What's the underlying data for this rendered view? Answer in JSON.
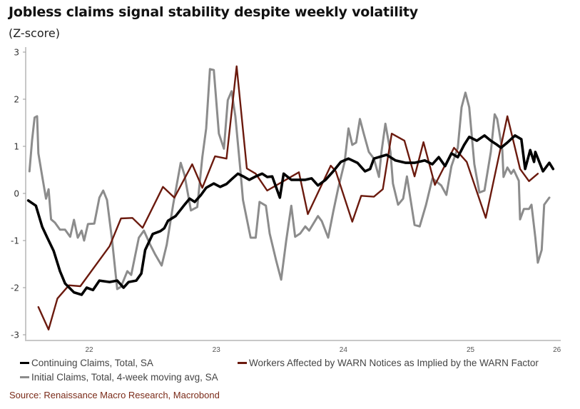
{
  "chart_data": {
    "type": "line",
    "title": "Jobless claims signal stability despite weekly volatility",
    "subtitle": "(Z-score)",
    "xlabel": "",
    "ylabel": "Z-score",
    "ylim": [
      -3,
      3
    ],
    "xlim": [
      2022.0,
      2026.21
    ],
    "yticks": [
      3,
      2,
      1,
      0,
      -1,
      -2,
      -3
    ],
    "xticks": [
      {
        "label": "22",
        "x": 2022.5
      },
      {
        "label": "23",
        "x": 2023.5
      },
      {
        "label": "24",
        "x": 2024.5
      },
      {
        "label": "25",
        "x": 2025.5
      },
      {
        "label": "26",
        "x": 2026.18
      }
    ],
    "grid": false,
    "legend_position": "bottom",
    "series": [
      {
        "name": "Continuing Claims, Total, SA",
        "color": "#000000",
        "points": [
          [
            2022.02,
            -0.15
          ],
          [
            2022.08,
            -0.26
          ],
          [
            2022.13,
            -0.71
          ],
          [
            2022.17,
            -0.94
          ],
          [
            2022.22,
            -1.22
          ],
          [
            2022.27,
            -1.65
          ],
          [
            2022.31,
            -1.91
          ],
          [
            2022.38,
            -2.1
          ],
          [
            2022.44,
            -2.15
          ],
          [
            2022.48,
            -2.0
          ],
          [
            2022.53,
            -2.05
          ],
          [
            2022.58,
            -1.85
          ],
          [
            2022.66,
            -1.88
          ],
          [
            2022.72,
            -1.85
          ],
          [
            2022.77,
            -2.0
          ],
          [
            2022.81,
            -1.88
          ],
          [
            2022.87,
            -1.85
          ],
          [
            2022.91,
            -1.7
          ],
          [
            2022.94,
            -1.2
          ],
          [
            2023.0,
            -0.86
          ],
          [
            2023.06,
            -0.8
          ],
          [
            2023.09,
            -0.74
          ],
          [
            2023.12,
            -0.58
          ],
          [
            2023.18,
            -0.48
          ],
          [
            2023.25,
            -0.24
          ],
          [
            2023.29,
            -0.11
          ],
          [
            2023.33,
            -0.18
          ],
          [
            2023.38,
            -0.03
          ],
          [
            2023.42,
            0.12
          ],
          [
            2023.48,
            0.21
          ],
          [
            2023.53,
            0.14
          ],
          [
            2023.58,
            0.2
          ],
          [
            2023.62,
            0.3
          ],
          [
            2023.67,
            0.42
          ],
          [
            2023.72,
            0.35
          ],
          [
            2023.76,
            0.29
          ],
          [
            2023.81,
            0.36
          ],
          [
            2023.86,
            0.42
          ],
          [
            2023.9,
            0.35
          ],
          [
            2023.94,
            0.36
          ],
          [
            2024.0,
            -0.09
          ],
          [
            2024.03,
            0.42
          ],
          [
            2024.09,
            0.29
          ],
          [
            2024.2,
            0.29
          ],
          [
            2024.25,
            0.32
          ],
          [
            2024.3,
            0.17
          ],
          [
            2024.36,
            0.29
          ],
          [
            2024.42,
            0.47
          ],
          [
            2024.48,
            0.67
          ],
          [
            2024.54,
            0.74
          ],
          [
            2024.61,
            0.65
          ],
          [
            2024.67,
            0.47
          ],
          [
            2024.71,
            0.52
          ],
          [
            2024.74,
            0.74
          ],
          [
            2024.84,
            0.82
          ],
          [
            2024.91,
            0.7
          ],
          [
            2024.99,
            0.65
          ],
          [
            2025.06,
            0.65
          ],
          [
            2025.14,
            0.7
          ],
          [
            2025.2,
            0.62
          ],
          [
            2025.25,
            0.77
          ],
          [
            2025.3,
            0.58
          ],
          [
            2025.35,
            0.85
          ],
          [
            2025.4,
            0.77
          ],
          [
            2025.45,
            1.03
          ],
          [
            2025.49,
            1.2
          ],
          [
            2025.55,
            1.12
          ],
          [
            2025.61,
            1.23
          ],
          [
            2025.66,
            1.12
          ],
          [
            2025.7,
            1.05
          ],
          [
            2025.74,
            0.97
          ],
          [
            2025.79,
            1.08
          ],
          [
            2025.85,
            1.23
          ],
          [
            2025.9,
            1.15
          ],
          [
            2025.93,
            0.52
          ],
          [
            2025.97,
            0.92
          ],
          [
            2026.0,
            0.67
          ],
          [
            2026.01,
            0.88
          ],
          [
            2026.07,
            0.47
          ],
          [
            2026.12,
            0.65
          ],
          [
            2026.15,
            0.52
          ]
        ]
      },
      {
        "name": "Workers Affected by WARN Notices as Implied by the WARN Factor",
        "color": "#6b1a0e",
        "points": [
          [
            2022.1,
            -2.41
          ],
          [
            2022.18,
            -2.89
          ],
          [
            2022.25,
            -2.23
          ],
          [
            2022.34,
            -1.95
          ],
          [
            2022.43,
            -1.97
          ],
          [
            2022.66,
            -1.12
          ],
          [
            2022.75,
            -0.53
          ],
          [
            2022.84,
            -0.52
          ],
          [
            2022.92,
            -0.73
          ],
          [
            2023.08,
            0.14
          ],
          [
            2023.17,
            -0.09
          ],
          [
            2023.31,
            0.62
          ],
          [
            2023.39,
            0.12
          ],
          [
            2023.49,
            0.79
          ],
          [
            2023.58,
            0.74
          ],
          [
            2023.66,
            2.7
          ],
          [
            2023.74,
            0.53
          ],
          [
            2023.81,
            0.42
          ],
          [
            2023.9,
            0.06
          ],
          [
            2024.15,
            0.45
          ],
          [
            2024.22,
            -0.44
          ],
          [
            2024.4,
            0.59
          ],
          [
            2024.44,
            0.47
          ],
          [
            2024.57,
            -0.6
          ],
          [
            2024.64,
            -0.05
          ],
          [
            2024.74,
            -0.07
          ],
          [
            2024.81,
            0.09
          ],
          [
            2024.88,
            1.27
          ],
          [
            2024.98,
            1.12
          ],
          [
            2025.06,
            0.36
          ],
          [
            2025.13,
            1.09
          ],
          [
            2025.22,
            0.18
          ],
          [
            2025.37,
            0.97
          ],
          [
            2025.47,
            0.67
          ],
          [
            2025.62,
            -0.52
          ],
          [
            2025.79,
            1.64
          ],
          [
            2025.89,
            0.52
          ],
          [
            2025.96,
            0.26
          ],
          [
            2026.03,
            0.42
          ]
        ]
      },
      {
        "name": "Initial Claims, Total, 4-week moving avg, SA",
        "color": "#8c8c8c",
        "points": [
          [
            2022.03,
            0.47
          ],
          [
            2022.05,
            1.12
          ],
          [
            2022.07,
            1.61
          ],
          [
            2022.09,
            1.64
          ],
          [
            2022.1,
            0.85
          ],
          [
            2022.13,
            0.36
          ],
          [
            2022.16,
            -0.11
          ],
          [
            2022.18,
            0.09
          ],
          [
            2022.2,
            -0.55
          ],
          [
            2022.23,
            -0.62
          ],
          [
            2022.27,
            -0.77
          ],
          [
            2022.31,
            -0.77
          ],
          [
            2022.35,
            -0.92
          ],
          [
            2022.38,
            -0.56
          ],
          [
            2022.41,
            -0.94
          ],
          [
            2022.44,
            -0.79
          ],
          [
            2022.46,
            -1.0
          ],
          [
            2022.49,
            -0.65
          ],
          [
            2022.54,
            -0.64
          ],
          [
            2022.58,
            -0.09
          ],
          [
            2022.61,
            0.06
          ],
          [
            2022.64,
            -0.14
          ],
          [
            2022.68,
            -0.99
          ],
          [
            2022.72,
            -2.03
          ],
          [
            2022.75,
            -1.98
          ],
          [
            2022.8,
            -1.65
          ],
          [
            2022.83,
            -1.73
          ],
          [
            2022.89,
            -0.94
          ],
          [
            2022.93,
            -0.79
          ],
          [
            2022.98,
            -1.09
          ],
          [
            2023.02,
            -1.3
          ],
          [
            2023.07,
            -1.53
          ],
          [
            2023.11,
            -1.09
          ],
          [
            2023.16,
            -0.24
          ],
          [
            2023.22,
            0.65
          ],
          [
            2023.25,
            0.39
          ],
          [
            2023.3,
            -0.36
          ],
          [
            2023.35,
            -0.29
          ],
          [
            2023.39,
            0.77
          ],
          [
            2023.42,
            1.38
          ],
          [
            2023.45,
            2.64
          ],
          [
            2023.48,
            2.62
          ],
          [
            2023.52,
            1.27
          ],
          [
            2023.56,
            0.95
          ],
          [
            2023.59,
            1.98
          ],
          [
            2023.62,
            2.17
          ],
          [
            2023.65,
            1.64
          ],
          [
            2023.69,
            0.47
          ],
          [
            2023.71,
            -0.14
          ],
          [
            2023.77,
            -0.94
          ],
          [
            2023.81,
            -0.94
          ],
          [
            2023.84,
            -0.18
          ],
          [
            2023.89,
            -0.26
          ],
          [
            2023.92,
            -0.85
          ],
          [
            2023.97,
            -1.42
          ],
          [
            2024.01,
            -1.83
          ],
          [
            2024.05,
            -1.0
          ],
          [
            2024.09,
            -0.26
          ],
          [
            2024.12,
            -0.92
          ],
          [
            2024.16,
            -0.85
          ],
          [
            2024.2,
            -0.7
          ],
          [
            2024.23,
            -0.79
          ],
          [
            2024.3,
            -0.48
          ],
          [
            2024.33,
            -0.59
          ],
          [
            2024.38,
            -0.94
          ],
          [
            2024.42,
            -0.39
          ],
          [
            2024.46,
            0.12
          ],
          [
            2024.51,
            0.67
          ],
          [
            2024.54,
            1.38
          ],
          [
            2024.57,
            1.03
          ],
          [
            2024.6,
            1.08
          ],
          [
            2024.63,
            1.58
          ],
          [
            2024.66,
            1.27
          ],
          [
            2024.7,
            0.88
          ],
          [
            2024.74,
            0.74
          ],
          [
            2024.78,
            0.35
          ],
          [
            2024.8,
            0.89
          ],
          [
            2024.83,
            1.48
          ],
          [
            2024.87,
            0.88
          ],
          [
            2024.89,
            0.21
          ],
          [
            2024.93,
            -0.24
          ],
          [
            2024.97,
            -0.11
          ],
          [
            2025.0,
            0.36
          ],
          [
            2025.06,
            -0.67
          ],
          [
            2025.1,
            -0.7
          ],
          [
            2025.15,
            -0.24
          ],
          [
            2025.2,
            0.32
          ],
          [
            2025.27,
            0.17
          ],
          [
            2025.31,
            -0.03
          ],
          [
            2025.35,
            0.58
          ],
          [
            2025.4,
            0.97
          ],
          [
            2025.43,
            1.83
          ],
          [
            2025.46,
            2.14
          ],
          [
            2025.49,
            1.83
          ],
          [
            2025.53,
            0.62
          ],
          [
            2025.57,
            0.02
          ],
          [
            2025.61,
            0.06
          ],
          [
            2025.66,
            0.88
          ],
          [
            2025.69,
            1.68
          ],
          [
            2025.71,
            1.58
          ],
          [
            2025.75,
            0.92
          ],
          [
            2025.76,
            0.35
          ],
          [
            2025.79,
            0.55
          ],
          [
            2025.82,
            0.42
          ],
          [
            2025.84,
            0.5
          ],
          [
            2025.88,
            0.27
          ],
          [
            2025.89,
            -0.55
          ],
          [
            2025.92,
            -0.33
          ],
          [
            2025.96,
            -0.33
          ],
          [
            2025.98,
            -0.24
          ],
          [
            2026.01,
            -0.94
          ],
          [
            2026.03,
            -1.47
          ],
          [
            2026.06,
            -1.2
          ],
          [
            2026.08,
            -0.24
          ],
          [
            2026.12,
            -0.09
          ]
        ]
      }
    ]
  },
  "legend": {
    "items": [
      {
        "label": "Continuing Claims, Total, SA",
        "color": "#000000"
      },
      {
        "label": "Workers Affected by WARN Notices as Implied by the WARN Factor",
        "color": "#6b1a0e"
      },
      {
        "label": "Initial Claims, Total, 4-week moving avg, SA",
        "color": "#8c8c8c"
      }
    ]
  },
  "source": "Source: Renaissance Macro Research, Macrobond"
}
